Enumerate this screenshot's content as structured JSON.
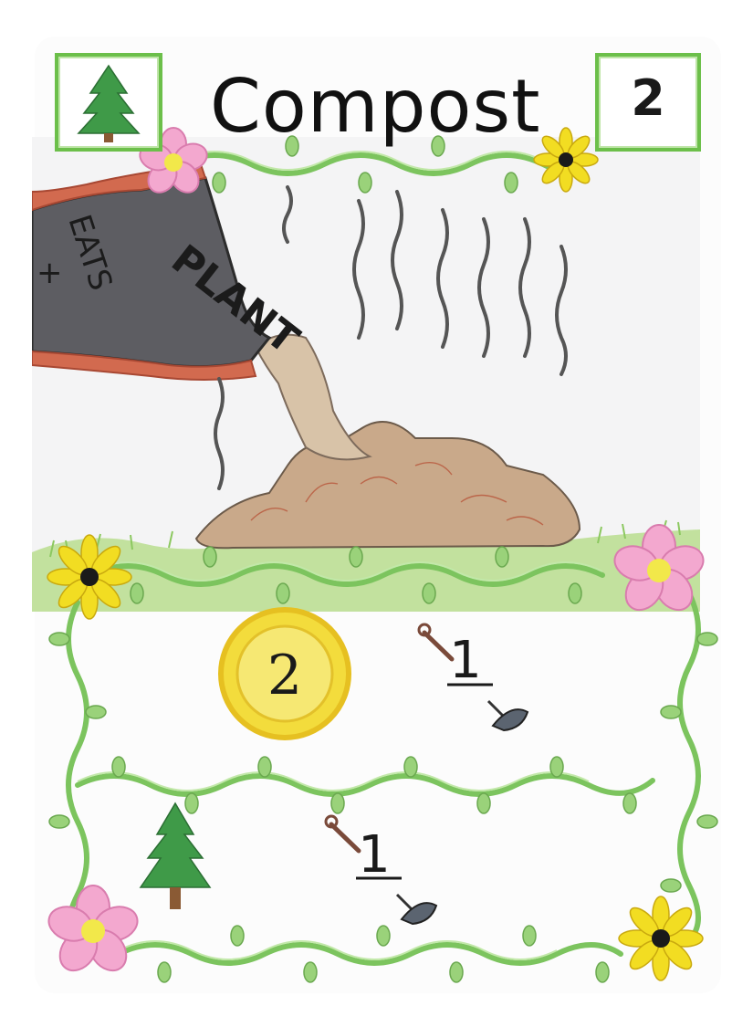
{
  "card": {
    "title": "Compost",
    "cost": "2",
    "type_icon": "pine-tree-icon",
    "illustration": {
      "bag_text_main": "PLANT",
      "bag_text_side": "EATS",
      "bag_text_plus": "+"
    },
    "rewards": [
      {
        "coin_value": "2",
        "shovel_value": "1",
        "coin_icon": "gold-coin-icon",
        "action_icon": "shovel-icon"
      },
      {
        "tree_icon": "pine-tree-icon",
        "shovel_value": "1",
        "action_icon": "shovel-icon"
      }
    ]
  },
  "colors": {
    "vine": "#7cc45e",
    "vine_light": "#bfe6a6",
    "coin": "#f3dc3c",
    "coin_rim": "#e6c021",
    "pink_flower": "#f3a8cf",
    "yellow_flower": "#f2dd22",
    "tree": "#3f9a48"
  }
}
